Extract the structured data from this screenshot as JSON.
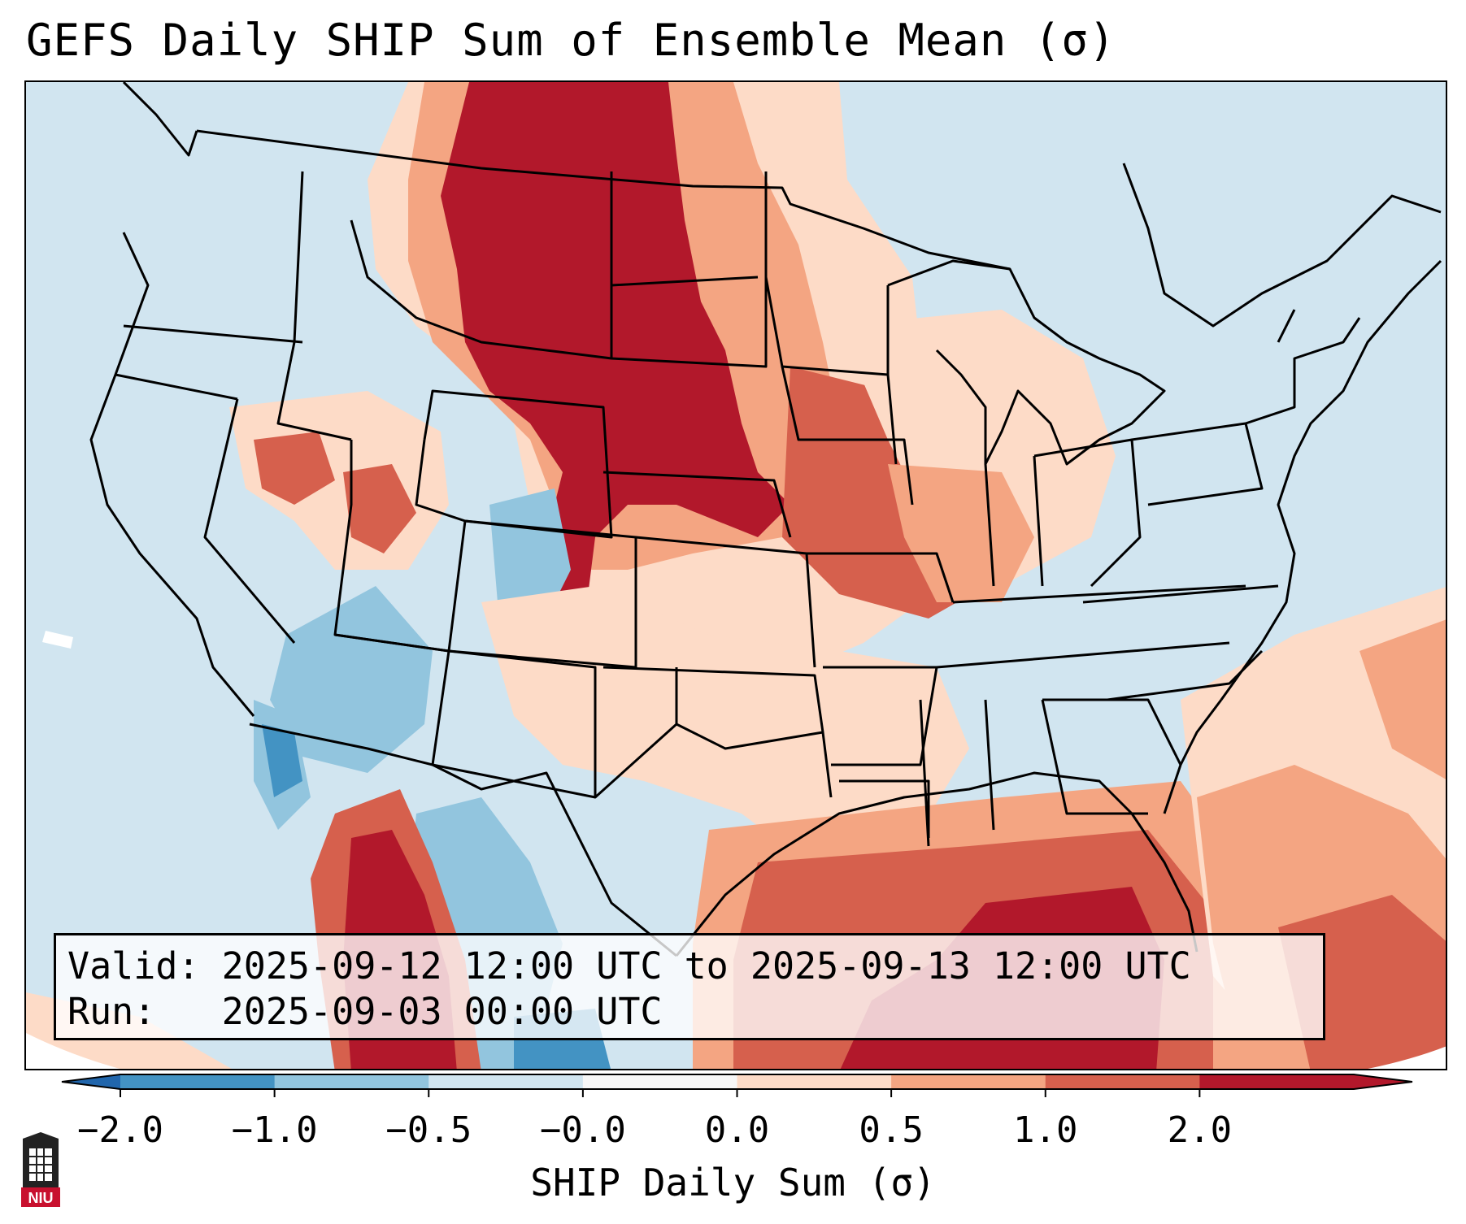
{
  "title": "GEFS Daily SHIP Sum of Ensemble Mean (σ)",
  "info_box": {
    "valid_label": "Valid:",
    "valid_value": "2025-09-12 12:00 UTC to 2025-09-13 12:00 UTC",
    "run_label": "Run:",
    "run_value": "2025-09-03 00:00 UTC"
  },
  "colorbar": {
    "label": "SHIP Daily Sum (σ)",
    "ticks": [
      "−2.0",
      "−1.0",
      "−0.5",
      "−0.0",
      "0.0",
      "0.5",
      "1.0",
      "2.0"
    ],
    "colors": [
      "#4393c3",
      "#92c5de",
      "#d1e5f0",
      "#f7f7f7",
      "#fddbc7",
      "#f4a582",
      "#d6604d",
      "#b2182b"
    ],
    "under_color": "#2166ac",
    "over_color": "#b2182b"
  },
  "logo": {
    "text": "NIU"
  }
}
